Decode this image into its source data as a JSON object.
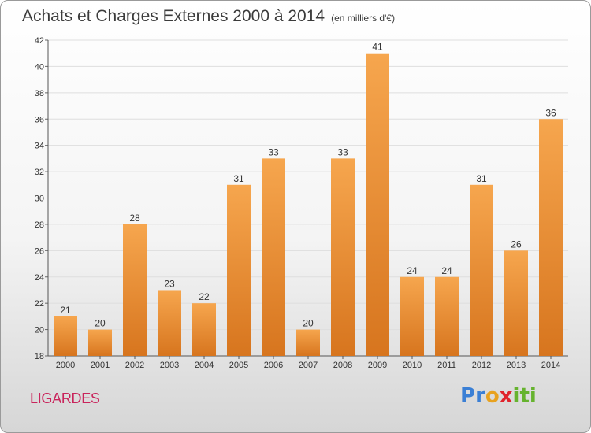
{
  "title": "Achats et Charges Externes 2000 à 2014",
  "subtitle": "(en milliers d'€)",
  "commune": "LIGARDES",
  "logo": {
    "letters": [
      {
        "char": "P",
        "color": "#3a7fd5"
      },
      {
        "char": "r",
        "color": "#3a7fd5"
      },
      {
        "char": "o",
        "color": "#e8a21f"
      },
      {
        "char": "x",
        "color": "#e0242c"
      },
      {
        "char": "i",
        "color": "#66b32e"
      },
      {
        "char": "t",
        "color": "#66b32e"
      },
      {
        "char": "i",
        "color": "#66b32e"
      }
    ]
  },
  "chart_data": {
    "type": "bar",
    "title": "Achats et Charges Externes 2000 à 2014",
    "subtitle": "(en milliers d'€)",
    "categories": [
      "2000",
      "2001",
      "2002",
      "2003",
      "2004",
      "2005",
      "2006",
      "2007",
      "2008",
      "2009",
      "2010",
      "2011",
      "2012",
      "2013",
      "2014"
    ],
    "values": [
      21,
      20,
      28,
      23,
      22,
      31,
      33,
      20,
      33,
      41,
      24,
      24,
      31,
      26,
      36
    ],
    "ylim": [
      18,
      42
    ],
    "yticks": [
      18,
      20,
      22,
      24,
      26,
      28,
      30,
      32,
      34,
      36,
      38,
      40,
      42
    ],
    "grid": true,
    "bar_color_top": "#f6a64e",
    "bar_color_bottom": "#d7751e",
    "data_labels": true
  }
}
